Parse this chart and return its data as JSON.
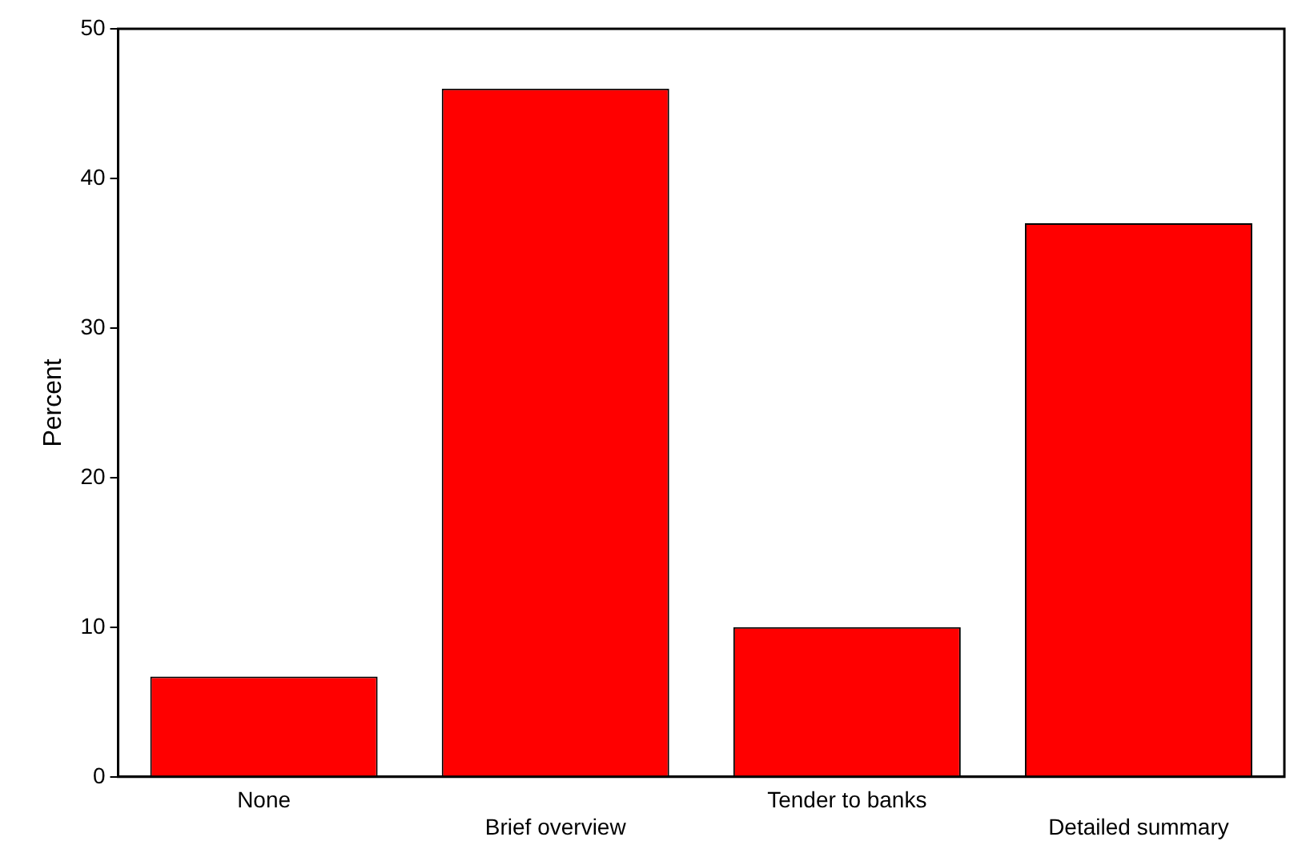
{
  "chart_data": {
    "type": "bar",
    "ylabel": "Percent",
    "categories": [
      "None",
      "Brief overview",
      "Tender to banks",
      "Detailed summary"
    ],
    "values": [
      6.7,
      46,
      10,
      37
    ],
    "color": "#ff0000",
    "ylim": [
      0,
      50
    ],
    "yticks": [
      0,
      10,
      20,
      30,
      40,
      50
    ],
    "grid": false
  }
}
